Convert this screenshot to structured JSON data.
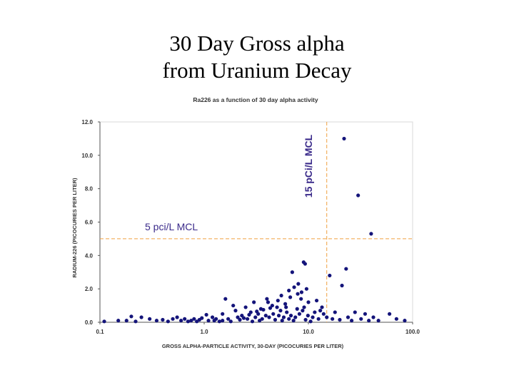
{
  "slide": {
    "title_line1": "30 Day Gross alpha",
    "title_line2": "from Uranium Decay"
  },
  "annotations": {
    "mcl_5": "5 pci/L MCL",
    "mcl_15": "15 pCi/L MCL"
  },
  "colors": {
    "points": "#14147a",
    "reference_line": "#f0a040",
    "axis_text": "#333333",
    "annotation_text": "#3a2a8a"
  },
  "chart_data": {
    "type": "scatter",
    "title": "Ra226 as a function of 30 day alpha activity",
    "xlabel": "GROSS ALPHA-PARTICLE ACTIVITY, 30-DAY (PICOCURIES PER LITER)",
    "ylabel": "RADIUM-226 (PICOCURIES PER LITER)",
    "x_scale": "log",
    "xlim": [
      0.1,
      100
    ],
    "ylim": [
      0,
      12
    ],
    "x_ticks": [
      {
        "value": 0.1,
        "label": "0.1"
      },
      {
        "value": 1,
        "label": "1.0"
      },
      {
        "value": 10,
        "label": "10.0"
      },
      {
        "value": 100,
        "label": "100.0"
      }
    ],
    "y_ticks": [
      {
        "value": 0,
        "label": "0.0"
      },
      {
        "value": 2,
        "label": "2.0"
      },
      {
        "value": 4,
        "label": "4.0"
      },
      {
        "value": 6,
        "label": "6.0"
      },
      {
        "value": 8,
        "label": "8.0"
      },
      {
        "value": 10,
        "label": "10.0"
      },
      {
        "value": 12,
        "label": "12.0"
      }
    ],
    "reference_lines": [
      {
        "axis": "y",
        "value": 5,
        "label": "5 pci/L MCL"
      },
      {
        "axis": "x",
        "value": 15,
        "label": "15 pCi/L MCL"
      }
    ],
    "grid": false,
    "series": [
      {
        "points": [
          [
            22,
            11.0
          ],
          [
            30,
            7.6
          ],
          [
            40,
            5.3
          ],
          [
            9.0,
            3.6
          ],
          [
            9.3,
            3.5
          ],
          [
            7.0,
            3.0
          ],
          [
            16,
            2.8
          ],
          [
            23,
            3.2
          ],
          [
            21,
            2.2
          ],
          [
            8.0,
            2.3
          ],
          [
            7.3,
            2.1
          ],
          [
            9.6,
            2.0
          ],
          [
            6.5,
            1.9
          ],
          [
            5.5,
            1.6
          ],
          [
            12,
            1.3
          ],
          [
            10,
            1.2
          ],
          [
            8.5,
            1.4
          ],
          [
            6.0,
            1.1
          ],
          [
            4.5,
            1.0
          ],
          [
            5.0,
            0.9
          ],
          [
            3.5,
            0.8
          ],
          [
            3.0,
            1.2
          ],
          [
            2.5,
            0.9
          ],
          [
            1.6,
            1.4
          ],
          [
            2.0,
            0.7
          ],
          [
            2.8,
            0.6
          ],
          [
            1.5,
            0.5
          ],
          [
            1.9,
            1.0
          ],
          [
            4.0,
            1.4
          ],
          [
            13,
            0.7
          ],
          [
            14,
            0.5
          ],
          [
            18,
            0.6
          ],
          [
            28,
            0.6
          ],
          [
            35,
            0.5
          ],
          [
            42,
            0.3
          ],
          [
            60,
            0.5
          ],
          [
            70,
            0.2
          ],
          [
            84,
            0.1
          ],
          [
            47,
            0.1
          ],
          [
            0.11,
            0.05
          ],
          [
            0.18,
            0.1
          ],
          [
            0.2,
            0.35
          ],
          [
            0.25,
            0.3
          ],
          [
            0.3,
            0.2
          ],
          [
            0.35,
            0.1
          ],
          [
            0.4,
            0.15
          ],
          [
            0.5,
            0.2
          ],
          [
            0.6,
            0.1
          ],
          [
            0.7,
            0.05
          ],
          [
            0.8,
            0.2
          ],
          [
            0.9,
            0.15
          ],
          [
            1.1,
            0.1
          ],
          [
            1.2,
            0.3
          ],
          [
            1.3,
            0.2
          ],
          [
            1.4,
            0.05
          ],
          [
            1.7,
            0.2
          ],
          [
            2.1,
            0.3
          ],
          [
            2.3,
            0.4
          ],
          [
            2.6,
            0.2
          ],
          [
            3.1,
            0.3
          ],
          [
            3.3,
            0.5
          ],
          [
            3.6,
            0.2
          ],
          [
            3.9,
            0.4
          ],
          [
            4.2,
            0.3
          ],
          [
            4.6,
            0.5
          ],
          [
            5.2,
            0.4
          ],
          [
            5.8,
            0.3
          ],
          [
            6.2,
            0.6
          ],
          [
            6.8,
            0.4
          ],
          [
            7.5,
            0.3
          ],
          [
            8.2,
            0.5
          ],
          [
            8.8,
            0.7
          ],
          [
            9.9,
            0.4
          ],
          [
            11,
            0.3
          ],
          [
            12.5,
            0.2
          ],
          [
            15,
            0.3
          ],
          [
            17,
            0.2
          ],
          [
            20,
            0.15
          ],
          [
            24,
            0.3
          ],
          [
            26,
            0.1
          ],
          [
            32,
            0.2
          ],
          [
            38,
            0.1
          ],
          [
            1.05,
            0.45
          ],
          [
            1.25,
            0.1
          ],
          [
            2.2,
            0.15
          ],
          [
            2.9,
            0.05
          ],
          [
            3.4,
            0.1
          ],
          [
            4.8,
            0.15
          ],
          [
            5.6,
            0.1
          ],
          [
            6.5,
            0.2
          ],
          [
            7.2,
            0.1
          ],
          [
            9.4,
            0.15
          ],
          [
            10.5,
            0.05
          ],
          [
            0.15,
            0.1
          ],
          [
            0.22,
            0.05
          ],
          [
            0.45,
            0.05
          ],
          [
            0.55,
            0.3
          ],
          [
            0.65,
            0.2
          ],
          [
            0.75,
            0.1
          ],
          [
            0.85,
            0.05
          ],
          [
            0.95,
            0.25
          ],
          [
            1.5,
            0.1
          ],
          [
            1.8,
            0.05
          ],
          [
            2.4,
            0.25
          ],
          [
            2.7,
            0.45
          ],
          [
            3.2,
            0.65
          ],
          [
            3.7,
            0.75
          ],
          [
            4.3,
            0.85
          ],
          [
            5.4,
            0.7
          ],
          [
            6.1,
            0.9
          ],
          [
            7.8,
            0.8
          ],
          [
            9.1,
            0.9
          ],
          [
            11.5,
            0.6
          ],
          [
            13.5,
            0.9
          ],
          [
            4.1,
            1.2
          ],
          [
            5.1,
            1.3
          ],
          [
            6.7,
            1.5
          ],
          [
            7.9,
            1.7
          ],
          [
            8.6,
            1.8
          ]
        ]
      }
    ]
  }
}
